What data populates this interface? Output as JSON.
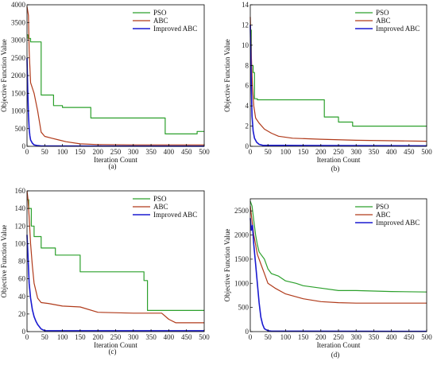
{
  "chart_data": [
    {
      "type": "line",
      "panel_label": "(a)",
      "xlabel": "Iteration Count",
      "ylabel": "Objective Function Value",
      "xlim": [
        0,
        500
      ],
      "ylim": [
        0,
        4000
      ],
      "xticks": [
        0,
        50,
        100,
        150,
        200,
        250,
        300,
        350,
        400,
        450,
        500
      ],
      "yticks": [
        0,
        500,
        1000,
        1500,
        2000,
        2500,
        3000,
        3500,
        4000
      ],
      "legend": "top-right",
      "series": [
        {
          "name": "PSO",
          "color": "#2ca02c",
          "x": [
            0,
            3,
            3,
            10,
            10,
            40,
            40,
            75,
            75,
            100,
            100,
            180,
            180,
            390,
            390,
            480,
            480,
            500
          ],
          "y": [
            3150,
            3150,
            3050,
            3050,
            2950,
            2950,
            1450,
            1450,
            1150,
            1150,
            1100,
            1100,
            800,
            800,
            350,
            350,
            420,
            420
          ]
        },
        {
          "name": "ABC",
          "color": "#b03a1a",
          "x": [
            0,
            4,
            6,
            10,
            20,
            30,
            40,
            50,
            70,
            90,
            110,
            150,
            200,
            300,
            400,
            500
          ],
          "y": [
            3950,
            3700,
            2700,
            1800,
            1500,
            1000,
            400,
            280,
            230,
            180,
            130,
            70,
            50,
            40,
            40,
            40
          ]
        },
        {
          "name": "Improved ABC",
          "color": "#1a1ad0",
          "x": [
            0,
            2,
            4,
            6,
            8,
            10,
            15,
            20,
            30,
            40,
            60,
            500
          ],
          "y": [
            2500,
            1600,
            900,
            500,
            300,
            180,
            90,
            40,
            20,
            10,
            8,
            5
          ]
        }
      ]
    },
    {
      "type": "line",
      "panel_label": "(b)",
      "xlabel": "Iteration Count",
      "ylabel": "Objective Function Value",
      "xlim": [
        0,
        500
      ],
      "ylim": [
        0,
        14
      ],
      "xticks": [
        0,
        50,
        100,
        150,
        200,
        250,
        300,
        350,
        400,
        450,
        500
      ],
      "yticks": [
        0,
        2,
        4,
        6,
        8,
        10,
        12,
        14
      ],
      "legend": "top-right",
      "series": [
        {
          "name": "PSO",
          "color": "#2ca02c",
          "x": [
            0,
            3,
            3,
            8,
            8,
            12,
            12,
            20,
            20,
            210,
            210,
            250,
            250,
            290,
            290,
            500
          ],
          "y": [
            11.5,
            11.5,
            8.0,
            8.0,
            7.3,
            7.3,
            4.7,
            4.7,
            4.6,
            4.6,
            2.9,
            2.9,
            2.4,
            2.4,
            2.0,
            2.0
          ]
        },
        {
          "name": "ABC",
          "color": "#b03a1a",
          "x": [
            0,
            3,
            6,
            10,
            15,
            25,
            40,
            60,
            80,
            120,
            200,
            300,
            400,
            500
          ],
          "y": [
            12.8,
            9.0,
            6.0,
            4.0,
            2.8,
            2.3,
            1.7,
            1.3,
            1.0,
            0.8,
            0.7,
            0.6,
            0.55,
            0.5
          ]
        },
        {
          "name": "Improved ABC",
          "color": "#1a1ad0",
          "x": [
            0,
            3,
            5,
            8,
            12,
            18,
            25,
            35,
            500
          ],
          "y": [
            12.0,
            6.0,
            3.0,
            1.5,
            0.8,
            0.4,
            0.2,
            0.1,
            0.05
          ]
        }
      ]
    },
    {
      "type": "line",
      "panel_label": "(c)",
      "xlabel": "Iteration Count",
      "ylabel": "Objective Function Value",
      "xlim": [
        0,
        500
      ],
      "ylim": [
        0,
        160
      ],
      "xticks": [
        0,
        50,
        100,
        150,
        200,
        250,
        300,
        350,
        400,
        450,
        500
      ],
      "yticks": [
        0,
        20,
        40,
        60,
        80,
        100,
        120,
        140,
        160
      ],
      "legend": "top-right",
      "series": [
        {
          "name": "PSO",
          "color": "#2ca02c",
          "x": [
            0,
            5,
            5,
            12,
            12,
            20,
            20,
            40,
            40,
            80,
            80,
            150,
            150,
            330,
            330,
            340,
            340,
            500
          ],
          "y": [
            150,
            150,
            140,
            140,
            120,
            120,
            108,
            108,
            95,
            95,
            87,
            87,
            68,
            68,
            58,
            58,
            24,
            24
          ]
        },
        {
          "name": "ABC",
          "color": "#b03a1a",
          "x": [
            0,
            3,
            6,
            10,
            15,
            20,
            30,
            40,
            60,
            100,
            150,
            200,
            300,
            380,
            400,
            420,
            500
          ],
          "y": [
            160,
            150,
            130,
            100,
            75,
            55,
            38,
            33,
            32,
            29,
            28,
            22,
            21,
            21,
            14,
            10,
            10
          ]
        },
        {
          "name": "Improved ABC",
          "color": "#1a1ad0",
          "x": [
            0,
            3,
            6,
            10,
            15,
            20,
            25,
            30,
            40,
            50,
            500
          ],
          "y": [
            110,
            85,
            55,
            38,
            25,
            17,
            12,
            8,
            3,
            1,
            1
          ]
        }
      ]
    },
    {
      "type": "line",
      "panel_label": "(d)",
      "xlabel": "Iteration Count",
      "ylabel": "Objective Function Value",
      "xlim": [
        0,
        500
      ],
      "ylim": [
        0,
        2750
      ],
      "xticks": [
        0,
        50,
        100,
        150,
        200,
        250,
        300,
        350,
        400,
        450,
        500
      ],
      "yticks": [
        0,
        500,
        1000,
        1500,
        2000,
        2500
      ],
      "legend": "top-right",
      "series": [
        {
          "name": "PSO",
          "color": "#2ca02c",
          "x": [
            0,
            5,
            10,
            15,
            20,
            25,
            30,
            40,
            50,
            60,
            80,
            100,
            130,
            150,
            200,
            250,
            300,
            400,
            500
          ],
          "y": [
            2700,
            2600,
            2300,
            2000,
            1800,
            1650,
            1600,
            1500,
            1300,
            1200,
            1150,
            1050,
            1000,
            950,
            900,
            850,
            850,
            830,
            820
          ]
        },
        {
          "name": "ABC",
          "color": "#b03a1a",
          "x": [
            0,
            5,
            10,
            15,
            20,
            25,
            30,
            40,
            50,
            70,
            100,
            150,
            200,
            250,
            300,
            400,
            500
          ],
          "y": [
            2600,
            2300,
            2000,
            1800,
            1600,
            1500,
            1400,
            1200,
            1000,
            900,
            780,
            680,
            620,
            600,
            590,
            590,
            590
          ]
        },
        {
          "name": "Improved ABC",
          "color": "#1a1ad0",
          "x": [
            0,
            3,
            6,
            10,
            15,
            20,
            25,
            30,
            35,
            40,
            50,
            60,
            500
          ],
          "y": [
            2350,
            2100,
            2200,
            1800,
            1400,
            1000,
            600,
            300,
            150,
            60,
            20,
            10,
            5
          ]
        }
      ]
    }
  ]
}
